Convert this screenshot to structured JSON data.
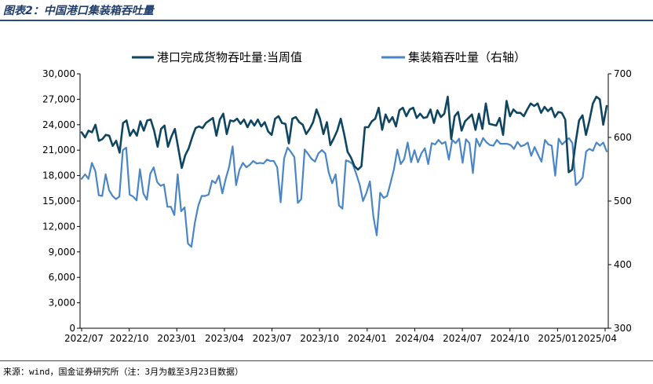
{
  "title": "图表2：中国港口集装箱吞吐量",
  "source": "来源：wind，国金证券研究所（注：3月为截至3月23日数据）",
  "chart_data": {
    "type": "line",
    "x_labels": [
      "2022/07",
      "2022/10",
      "2023/01",
      "2023/04",
      "2023/07",
      "2023/10",
      "2024/01",
      "2024/04",
      "2024/07",
      "2024/10",
      "2025/01",
      "2025/04"
    ],
    "left_axis": {
      "min": 0,
      "max": 30000,
      "ticks": [
        "0",
        "3,000",
        "6,000",
        "9,000",
        "12,000",
        "15,000",
        "18,000",
        "21,000",
        "24,000",
        "27,000",
        "30,000"
      ]
    },
    "right_axis": {
      "min": 300,
      "max": 700,
      "ticks": [
        "300",
        "400",
        "500",
        "600",
        "700"
      ],
      "label": ""
    },
    "grid": false,
    "legend_position": "top",
    "series": [
      {
        "name": "港口完成货物吞吐量:当周值",
        "axis": "left",
        "color": "#0e4560",
        "values": [
          23100,
          22500,
          23300,
          23100,
          24000,
          22100,
          22300,
          22800,
          22700,
          21500,
          22100,
          20700,
          24200,
          24500,
          22700,
          23400,
          22700,
          24400,
          23300,
          24500,
          24600,
          23300,
          21400,
          23500,
          23900,
          21400,
          22600,
          23500,
          21200,
          18900,
          20400,
          21200,
          22500,
          23600,
          23800,
          23600,
          24200,
          24500,
          24800,
          22700,
          24600,
          25300,
          22900,
          24500,
          24400,
          24700,
          24100,
          24600,
          23700,
          24500,
          23900,
          24600,
          23800,
          24300,
          23200,
          22800,
          24700,
          25000,
          24200,
          24100,
          21800,
          24700,
          24900,
          24300,
          24000,
          22900,
          23500,
          24300,
          25800,
          24700,
          22900,
          24300,
          21600,
          22400,
          23300,
          24700,
          22900,
          20800,
          20100,
          19100,
          18700,
          19100,
          23700,
          23700,
          24400,
          24700,
          26000,
          23400,
          25200,
          24300,
          24900,
          23800,
          25700,
          26000,
          25000,
          25800,
          26000,
          24800,
          25300,
          24800,
          24900,
          25800,
          24200,
          25700,
          24900,
          25300,
          27300,
          22300,
          25000,
          25500,
          23300,
          24400,
          24800,
          25200,
          23400,
          25300,
          23500,
          26500,
          24100,
          24000,
          23900,
          24800,
          22800,
          26800,
          25000,
          25800,
          25400,
          25400,
          25000,
          25800,
          26500,
          26200,
          26500,
          25400,
          26100,
          25600,
          26000,
          24900,
          25500,
          25400,
          24600,
          18400,
          18700,
          21900,
          24500,
          25100,
          22800,
          24500,
          26500,
          27300,
          27000,
          24000,
          26200
        ]
      },
      {
        "name": "集装箱吞吐量（右轴）",
        "axis": "right",
        "color": "#4a86c5",
        "values": [
          535,
          542,
          535,
          560,
          547,
          509,
          508,
          542,
          517,
          508,
          503,
          507,
          580,
          584,
          510,
          507,
          501,
          550,
          512,
          502,
          543,
          553,
          530,
          524,
          526,
          491,
          491,
          478,
          542,
          484,
          490,
          433,
          428,
          466,
          493,
          508,
          508,
          510,
          532,
          528,
          540,
          512,
          535,
          554,
          586,
          525,
          549,
          560,
          553,
          557,
          563,
          559,
          560,
          559,
          565,
          563,
          563,
          553,
          498,
          567,
          584,
          577,
          569,
          497,
          503,
          581,
          574,
          566,
          562,
          575,
          580,
          575,
          545,
          528,
          542,
          493,
          488,
          564,
          562,
          558,
          543,
          526,
          500,
          513,
          531,
          476,
          446,
          513,
          505,
          508,
          528,
          550,
          581,
          558,
          566,
          592,
          561,
          580,
          561,
          575,
          583,
          558,
          591,
          589,
          596,
          590,
          593,
          565,
          596,
          591,
          598,
          560,
          597,
          591,
          544,
          598,
          586,
          599,
          592,
          588,
          587,
          596,
          590,
          590,
          590,
          588,
          582,
          593,
          586,
          588,
          592,
          571,
          585,
          573,
          562,
          596,
          589,
          587,
          540,
          598,
          589,
          594,
          599,
          591,
          525,
          530,
          537,
          578,
          582,
          579,
          592,
          587,
          592,
          578
        ]
      }
    ]
  }
}
